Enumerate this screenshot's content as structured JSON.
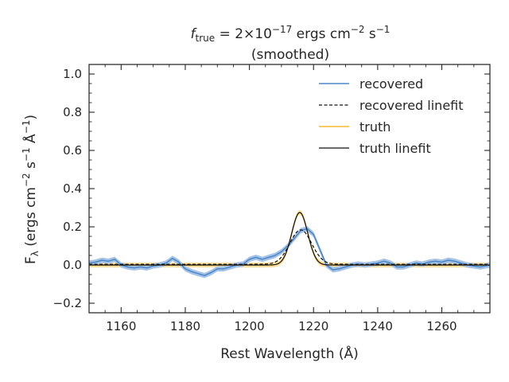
{
  "chart_data": {
    "type": "line",
    "title_line1_prefix": "f",
    "title_line1_sub": "true",
    "title_line1_eq": " = 2×10",
    "title_line1_exp1": "−17",
    "title_line1_units_a": " ergs cm",
    "title_line1_exp2": "−2",
    "title_line1_units_b": " s",
    "title_line1_exp3": "−1",
    "title_line2": "(smoothed)",
    "xlabel": "Rest Wavelength (Å)",
    "ylabel_prefix": "F",
    "ylabel_sub": "λ",
    "ylabel_a": " (ergs cm",
    "ylabel_exp1": "−2",
    "ylabel_b": " s",
    "ylabel_exp2": "−1",
    "ylabel_c": " Å",
    "ylabel_exp3": "−1",
    "ylabel_d": ")",
    "xlim": [
      1150,
      1275
    ],
    "ylim": [
      -0.25,
      1.05
    ],
    "x_ticks": [
      1160,
      1180,
      1200,
      1220,
      1240,
      1260
    ],
    "x_tick_labels": [
      "1160",
      "1180",
      "1200",
      "1220",
      "1240",
      "1260"
    ],
    "y_ticks": [
      -0.2,
      0.0,
      0.2,
      0.4,
      0.6,
      0.8,
      1.0
    ],
    "y_tick_labels": [
      "−0.2",
      "0.0",
      "0.2",
      "0.4",
      "0.6",
      "0.8",
      "1.0"
    ],
    "legend_position": "top-right",
    "legend": [
      {
        "label": "recovered",
        "color": "#4a87c8",
        "style": "solid"
      },
      {
        "label": "recovered linefit",
        "color": "#111111",
        "style": "dashed"
      },
      {
        "label": "truth",
        "color": "#f5b731",
        "style": "solid"
      },
      {
        "label": "truth linefit",
        "color": "#111111",
        "style": "solid"
      }
    ],
    "colors": {
      "recovered": "#4a87c8",
      "recovered_band": "#a5c3e6",
      "truth": "#f5b731",
      "truth_band": "#fbe0a0",
      "linefit": "#111111"
    },
    "series": {
      "recovered": {
        "x": [
          1150,
          1152,
          1154,
          1156,
          1158,
          1160,
          1162,
          1164,
          1166,
          1168,
          1170,
          1172,
          1174,
          1176,
          1178,
          1180,
          1182,
          1184,
          1186,
          1188,
          1190,
          1192,
          1194,
          1196,
          1198,
          1200,
          1202,
          1204,
          1206,
          1208,
          1210,
          1212,
          1214,
          1216,
          1218,
          1220,
          1222,
          1224,
          1226,
          1228,
          1230,
          1232,
          1234,
          1236,
          1238,
          1240,
          1242,
          1244,
          1246,
          1248,
          1250,
          1252,
          1254,
          1256,
          1258,
          1260,
          1262,
          1264,
          1266,
          1268,
          1270,
          1272,
          1275
        ],
        "y": [
          0.01,
          0.015,
          0.025,
          0.02,
          0.03,
          0.0,
          -0.01,
          -0.015,
          -0.01,
          -0.015,
          -0.005,
          0.0,
          0.01,
          0.035,
          0.015,
          -0.02,
          -0.035,
          -0.045,
          -0.055,
          -0.04,
          -0.02,
          -0.02,
          -0.01,
          0.0,
          0.005,
          0.03,
          0.04,
          0.03,
          0.04,
          0.05,
          0.07,
          0.1,
          0.14,
          0.18,
          0.19,
          0.16,
          0.08,
          0.0,
          -0.025,
          -0.02,
          -0.01,
          0.0,
          0.005,
          0.0,
          0.005,
          0.01,
          0.02,
          0.01,
          -0.01,
          -0.01,
          0.0,
          0.01,
          0.005,
          0.015,
          0.02,
          0.015,
          0.025,
          0.02,
          0.01,
          0.0,
          -0.005,
          -0.01,
          0.0
        ],
        "band_halfwidth": 0.014
      },
      "recovered_linefit": {
        "model": "gaussian",
        "center": 1216.0,
        "amplitude": 0.18,
        "sigma": 3.4,
        "baseline": 0.004
      },
      "truth": {
        "model": "gaussian",
        "center": 1215.7,
        "amplitude": 0.275,
        "sigma": 2.5,
        "baseline": 0.0,
        "band_halfwidth": 0.013
      },
      "truth_linefit": {
        "model": "gaussian",
        "center": 1215.7,
        "amplitude": 0.275,
        "sigma": 2.5,
        "baseline": 0.0
      }
    }
  }
}
